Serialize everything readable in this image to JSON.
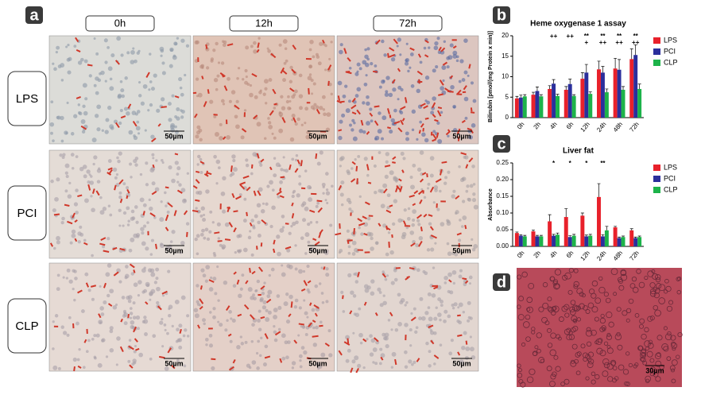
{
  "panel_a": {
    "label": "a",
    "columns": [
      "0h",
      "12h",
      "72h"
    ],
    "rows": [
      "LPS",
      "PCI",
      "CLP"
    ],
    "scale_bars": [
      "50µm",
      "50µm",
      "50µm",
      "50µm",
      "50µm",
      "50µm",
      "50µm",
      "50µm",
      "50µm"
    ]
  },
  "panel_d": {
    "label": "d",
    "scale_bar": "30µm"
  },
  "chart_data": [
    {
      "type": "bar",
      "panel": "b",
      "title": "Heme oxygenase 1 assay",
      "y_label": "Bilirubin [pmol/(mg Protein x min)]",
      "categories": [
        "0h",
        "2h",
        "4h",
        "6h",
        "12h",
        "24h",
        "48h",
        "72h"
      ],
      "series": [
        {
          "name": "LPS",
          "color": "#e8212b",
          "values": [
            4.7,
            5.6,
            7.0,
            6.8,
            9.5,
            11.8,
            12.0,
            14.3
          ],
          "errors": [
            0.5,
            0.6,
            0.8,
            0.8,
            1.5,
            2.0,
            2.5,
            2.5
          ]
        },
        {
          "name": "PCI",
          "color": "#2b2f9c",
          "values": [
            4.9,
            6.5,
            8.3,
            8.2,
            11.0,
            11.0,
            11.7,
            15.3
          ],
          "errors": [
            0.6,
            1.0,
            1.0,
            1.2,
            2.0,
            1.5,
            2.5,
            2.5
          ]
        },
        {
          "name": "CLP",
          "color": "#1db34a",
          "values": [
            5.2,
            5.2,
            5.3,
            5.3,
            5.8,
            6.2,
            6.8,
            7.0
          ],
          "errors": [
            0.4,
            0.4,
            0.4,
            0.3,
            0.5,
            0.8,
            0.8,
            1.2
          ]
        }
      ],
      "annotations": [
        {
          "x": "4h",
          "lines": [
            "++"
          ]
        },
        {
          "x": "6h",
          "lines": [
            "++"
          ]
        },
        {
          "x": "12h",
          "lines": [
            "**",
            "+"
          ]
        },
        {
          "x": "24h",
          "lines": [
            "**",
            "++"
          ]
        },
        {
          "x": "48h",
          "lines": [
            "**",
            "++"
          ]
        },
        {
          "x": "72h",
          "lines": [
            "**",
            "++"
          ]
        }
      ],
      "ylim": [
        0,
        20
      ],
      "yticks": [
        0,
        5,
        10,
        15,
        20
      ]
    },
    {
      "type": "bar",
      "panel": "c",
      "title": "Liver fat",
      "y_label": "Absorbance",
      "categories": [
        "0h",
        "2h",
        "4h",
        "6h",
        "12h",
        "24h",
        "48h",
        "72h"
      ],
      "series": [
        {
          "name": "LPS",
          "color": "#e8212b",
          "values": [
            0.04,
            0.045,
            0.075,
            0.088,
            0.092,
            0.148,
            0.057,
            0.048
          ],
          "errors": [
            0.003,
            0.004,
            0.02,
            0.025,
            0.008,
            0.04,
            0.003,
            0.005
          ]
        },
        {
          "name": "PCI",
          "color": "#2b2f9c",
          "values": [
            0.032,
            0.03,
            0.032,
            0.028,
            0.03,
            0.03,
            0.025,
            0.025
          ],
          "errors": [
            0.003,
            0.003,
            0.004,
            0.004,
            0.004,
            0.005,
            0.003,
            0.003
          ]
        },
        {
          "name": "CLP",
          "color": "#1db34a",
          "values": [
            0.03,
            0.03,
            0.035,
            0.032,
            0.032,
            0.048,
            0.028,
            0.028
          ],
          "errors": [
            0.003,
            0.003,
            0.005,
            0.004,
            0.004,
            0.012,
            0.003,
            0.003
          ]
        }
      ],
      "annotations": [
        {
          "x": "4h",
          "lines": [
            "*"
          ]
        },
        {
          "x": "6h",
          "lines": [
            "*"
          ]
        },
        {
          "x": "12h",
          "lines": [
            "*"
          ]
        },
        {
          "x": "24h",
          "lines": [
            "**"
          ]
        }
      ],
      "ylim": [
        0,
        0.25
      ],
      "yticks": [
        {
          "value": 0,
          "label": "0.00"
        },
        {
          "value": 0.05,
          "label": "0.05"
        },
        {
          "value": 0.1,
          "label": "0.10"
        },
        {
          "value": 0.15,
          "label": "0.15"
        },
        {
          "value": 0.2,
          "label": "0.20"
        },
        {
          "value": 0.25,
          "label": "0.25"
        }
      ]
    }
  ]
}
